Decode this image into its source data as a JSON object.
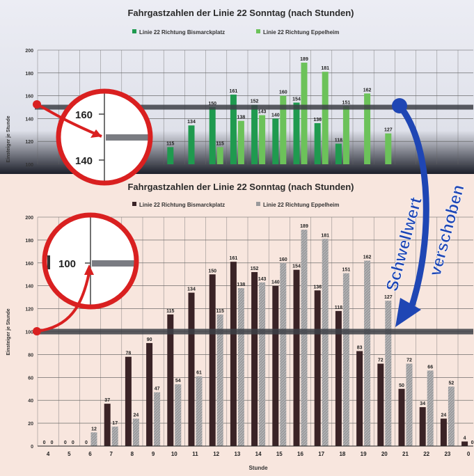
{
  "top_chart": {
    "title": "Fahrgastzahlen der Linie 22 Sonntag (nach Stunden)",
    "legend": [
      "Linie 22 Richtung Bismarckplatz",
      "Linie 22 Richtung Eppelheim"
    ],
    "ylabel": "Einsteiger je Stunde",
    "ticks": [
      "200",
      "180",
      "160",
      "140",
      "120",
      "100"
    ],
    "threshold_value": 150
  },
  "bottom_chart": {
    "title": "Fahrgastzahlen der Linie 22 Sonntag (nach Stunden)",
    "legend": [
      "Linie 22 Richtung Bismarckplatz",
      "Linie 22 Richtung Eppelheim"
    ],
    "ylabel": "Einsteiger je Stunde",
    "xlabel": "Stunde",
    "ticks": [
      "200",
      "180",
      "160",
      "140",
      "120",
      "100",
      "80",
      "60",
      "40",
      "20",
      "0"
    ],
    "threshold_value": 100
  },
  "zoom_top": {
    "upper": "160",
    "lower": "140"
  },
  "zoom_bottom": {
    "label": "100"
  },
  "arrow_text": {
    "line1": "Schwellwert",
    "line2": "verschoben"
  },
  "colors": {
    "top_bg": "#e6e8f0",
    "bottom_bg": "#f8e6de",
    "bismarck_top": "#1f9a4f",
    "eppelheim_top": "#6cc25a",
    "bismarck_bottom": "#3a2326",
    "eppelheim_bottom": "#9a9a9c",
    "threshold": "#3d3f47",
    "arrow": "#1f46b4",
    "circle": "#d92020"
  },
  "chart_data": {
    "type": "bar",
    "title": "Fahrgastzahlen der Linie 22 Sonntag (nach Stunden)",
    "xlabel": "Stunde",
    "ylabel": "Einsteiger je Stunde",
    "ylim": [
      0,
      200
    ],
    "categories": [
      "4",
      "5",
      "6",
      "7",
      "8",
      "9",
      "10",
      "11",
      "12",
      "13",
      "14",
      "15",
      "16",
      "17",
      "18",
      "19",
      "20",
      "21",
      "22",
      "23",
      "0",
      "1"
    ],
    "series": [
      {
        "name": "Linie 22 Richtung Bismarckplatz",
        "values": [
          0,
          0,
          0,
          37,
          78,
          90,
          115,
          134,
          150,
          161,
          152,
          140,
          154,
          136,
          118,
          83,
          72,
          50,
          34,
          24,
          4,
          0
        ]
      },
      {
        "name": "Linie 22 Richtung Eppelheim",
        "values": [
          0,
          0,
          12,
          17,
          24,
          47,
          54,
          61,
          115,
          138,
          143,
          160,
          189,
          181,
          151,
          162,
          127,
          72,
          66,
          52,
          0,
          0
        ]
      }
    ],
    "grid": true,
    "legend_position": "top",
    "thresholds": {
      "before": 150,
      "after": 100
    }
  }
}
